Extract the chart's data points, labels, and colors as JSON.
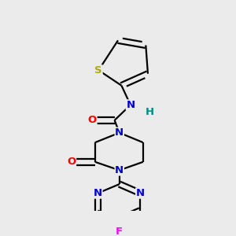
{
  "bg_color": "#ebebeb",
  "bond_color": "#000000",
  "atom_colors": {
    "N": "#0000cc",
    "O": "#ff0000",
    "S": "#aaaa00",
    "F": "#ff00ff",
    "H": "#008888",
    "C": "#000000"
  },
  "figsize": [
    3.0,
    3.0
  ],
  "dpi": 100,
  "lw": 1.6,
  "fontsize": 9.5
}
